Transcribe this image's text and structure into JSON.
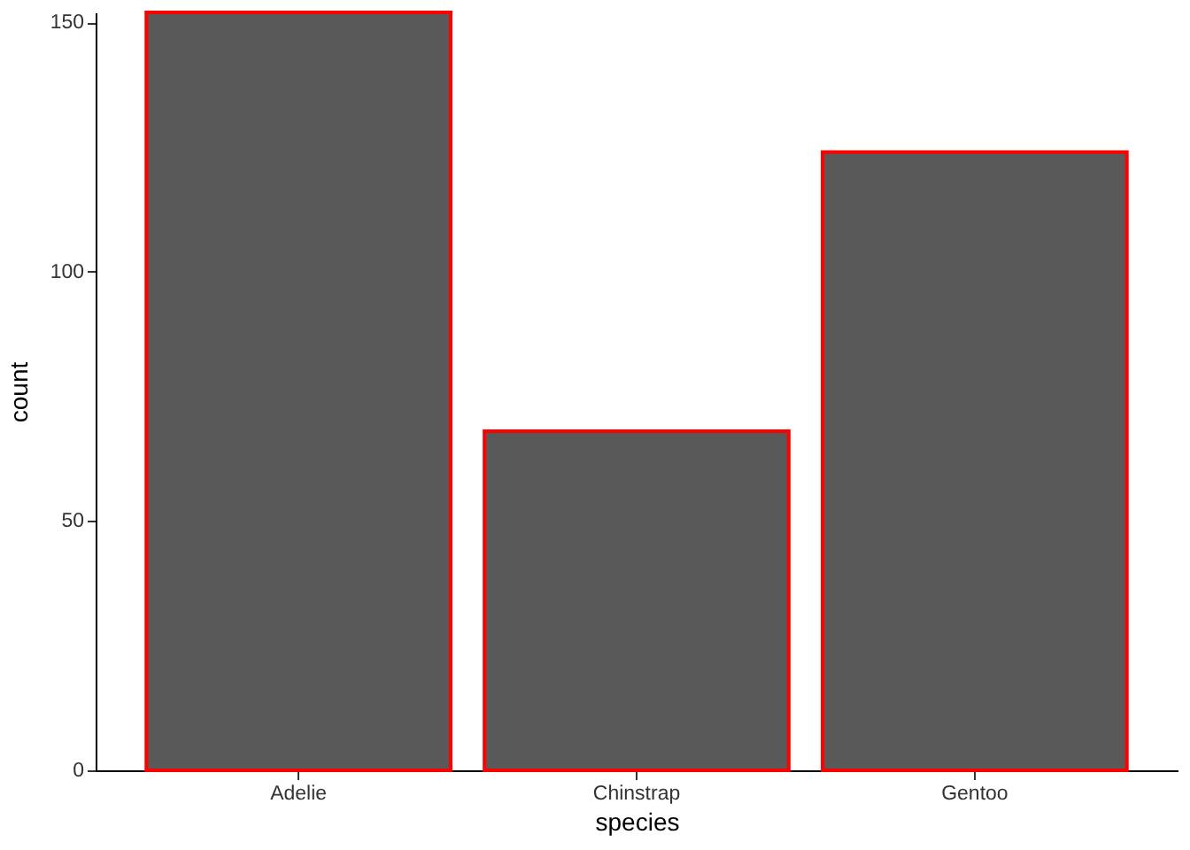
{
  "chart_data": {
    "type": "bar",
    "xlabel": "species",
    "ylabel": "count",
    "categories": [
      "Adelie",
      "Chinstrap",
      "Gentoo"
    ],
    "values": [
      152,
      68,
      124
    ],
    "color": "#595959",
    "ylim": [
      0,
      152
    ],
    "yticks": [
      0,
      50,
      100,
      150
    ],
    "grid": false
  }
}
